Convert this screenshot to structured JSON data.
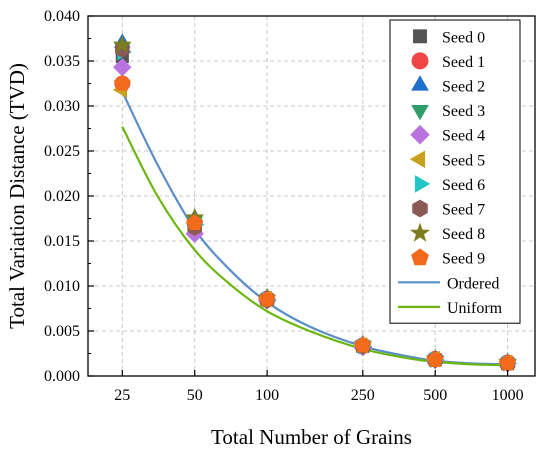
{
  "chart_data": {
    "type": "scatter",
    "title": "",
    "xlabel": "Total Number of Grains",
    "ylabel": "Total Variation Distance (TVD)",
    "x_scale": "log",
    "x_ticks": [
      25,
      50,
      100,
      250,
      500,
      1000
    ],
    "x_tick_labels": [
      "25",
      "50",
      "100",
      "250",
      "500",
      "1000"
    ],
    "xlim": [
      18,
      1300
    ],
    "ylim": [
      0,
      0.04
    ],
    "y_ticks": [
      0,
      0.005,
      0.01,
      0.015,
      0.02,
      0.025,
      0.03,
      0.035,
      0.04
    ],
    "y_tick_labels": [
      "0.000",
      "0.005",
      "0.010",
      "0.015",
      "0.020",
      "0.025",
      "0.030",
      "0.035",
      "0.040"
    ],
    "grid": true,
    "legend_position": "top-right",
    "series": [
      {
        "name": "Seed 0",
        "marker": "square",
        "color": "#555555",
        "x": [
          25,
          50,
          100,
          250,
          500,
          1000
        ],
        "y": [
          0.0355,
          0.0165,
          0.0085,
          0.0033,
          0.0018,
          0.0014
        ]
      },
      {
        "name": "Seed 1",
        "marker": "circle",
        "color": "#ef4545",
        "x": [
          25,
          50,
          100,
          250,
          500,
          1000
        ],
        "y": [
          0.0325,
          0.017,
          0.0086,
          0.0034,
          0.0019,
          0.0015
        ]
      },
      {
        "name": "Seed 2",
        "marker": "triangle-up",
        "color": "#1f6fcf",
        "x": [
          25,
          50,
          100,
          250,
          500,
          1000
        ],
        "y": [
          0.037,
          0.0175,
          0.0087,
          0.0035,
          0.0019,
          0.0015
        ]
      },
      {
        "name": "Seed 3",
        "marker": "triangle-down",
        "color": "#2f9e6b",
        "x": [
          25,
          50,
          100,
          250,
          500,
          1000
        ],
        "y": [
          0.0365,
          0.0172,
          0.0085,
          0.0034,
          0.0018,
          0.0014
        ]
      },
      {
        "name": "Seed 4",
        "marker": "diamond",
        "color": "#b873de",
        "x": [
          25,
          50,
          100,
          250,
          500,
          1000
        ],
        "y": [
          0.0343,
          0.0158,
          0.0084,
          0.0032,
          0.0018,
          0.0014
        ]
      },
      {
        "name": "Seed 5",
        "marker": "triangle-left",
        "color": "#c9a11e",
        "x": [
          25,
          50,
          100,
          250,
          500,
          1000
        ],
        "y": [
          0.0318,
          0.017,
          0.0086,
          0.0034,
          0.0019,
          0.0015
        ]
      },
      {
        "name": "Seed 6",
        "marker": "triangle-right",
        "color": "#1fc7c7",
        "x": [
          25,
          50,
          100,
          250,
          500,
          1000
        ],
        "y": [
          0.036,
          0.0168,
          0.0085,
          0.0033,
          0.0018,
          0.0014
        ]
      },
      {
        "name": "Seed 7",
        "marker": "hexagon",
        "color": "#8b5a55",
        "x": [
          25,
          50,
          100,
          250,
          500,
          1000
        ],
        "y": [
          0.0363,
          0.0165,
          0.0084,
          0.0033,
          0.0018,
          0.0014
        ]
      },
      {
        "name": "Seed 8",
        "marker": "star",
        "color": "#7d7d1d",
        "x": [
          25,
          50,
          100,
          250,
          500,
          1000
        ],
        "y": [
          0.0368,
          0.0176,
          0.0087,
          0.0035,
          0.0019,
          0.0015
        ]
      },
      {
        "name": "Seed 9",
        "marker": "pentagon",
        "color": "#f26b1d",
        "x": [
          25,
          50,
          100,
          250,
          500,
          1000
        ],
        "y": [
          0.0325,
          0.017,
          0.0085,
          0.0034,
          0.0018,
          0.0014
        ]
      }
    ],
    "lines": [
      {
        "name": "Ordered",
        "color": "#5b8ec7",
        "x": [
          25,
          35,
          50,
          70,
          100,
          150,
          250,
          400,
          500,
          700,
          1000
        ],
        "y": [
          0.0316,
          0.0235,
          0.0163,
          0.0118,
          0.0082,
          0.0055,
          0.0033,
          0.0021,
          0.0017,
          0.0014,
          0.0013
        ]
      },
      {
        "name": "Uniform",
        "color": "#6ab60d",
        "x": [
          25,
          35,
          50,
          70,
          100,
          150,
          250,
          400,
          500,
          700,
          1000
        ],
        "y": [
          0.0277,
          0.02,
          0.014,
          0.0102,
          0.0072,
          0.005,
          0.003,
          0.0019,
          0.0016,
          0.0013,
          0.0012
        ]
      }
    ]
  }
}
